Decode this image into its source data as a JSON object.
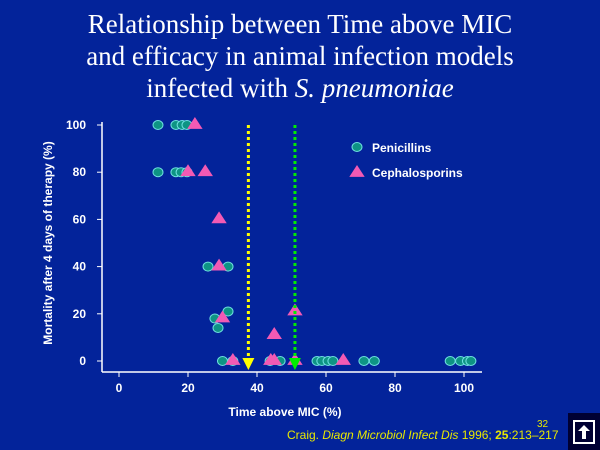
{
  "slide": {
    "title_line1": "Relationship between Time above MIC",
    "title_line2": "and efficacy in animal infection models",
    "title_line3_prefix": "infected with ",
    "title_line3_italic": "S. pneumoniae",
    "citation": {
      "author": "Craig. ",
      "journal": "Diagn Microbiol Infect Dis",
      "year": " 1996; ",
      "volume": "25",
      "pages": ":213–217"
    },
    "page_number": "32",
    "nav_icon": "return-arrow-icon"
  },
  "chart_data": {
    "type": "scatter",
    "xlabel": "Time above MIC (%)",
    "ylabel": "Mortality after 4 days of therapy (%)",
    "xlim": [
      -5,
      105
    ],
    "ylim": [
      0,
      100
    ],
    "xticks": [
      0,
      20,
      40,
      60,
      80,
      100
    ],
    "yticks": [
      0,
      20,
      40,
      60,
      80,
      100
    ],
    "legend_position": "top-right",
    "colors": {
      "background": "#03239a",
      "penicillins": "#0e9484",
      "penicillins_edge": "#6fe0e0",
      "cephalosporins": "#f25ab4",
      "axis": "#ffffff",
      "yellow_line": "#ffff00",
      "green_line": "#00ee00"
    },
    "series": [
      {
        "name": "Penicillins",
        "marker": "circle",
        "points": [
          [
            11.3,
            100
          ],
          [
            16.5,
            100
          ],
          [
            18.3,
            100
          ],
          [
            19.7,
            100
          ],
          [
            11.3,
            80
          ],
          [
            16.5,
            80
          ],
          [
            18,
            80
          ],
          [
            19.7,
            80
          ],
          [
            25.8,
            40
          ],
          [
            31.6,
            40
          ],
          [
            31.6,
            21
          ],
          [
            27.8,
            18
          ],
          [
            28.7,
            14
          ],
          [
            30,
            0
          ],
          [
            33,
            0
          ],
          [
            43.8,
            0
          ],
          [
            46.7,
            0
          ],
          [
            57.4,
            0
          ],
          [
            58.8,
            0
          ],
          [
            60.6,
            0
          ],
          [
            62,
            0
          ],
          [
            71,
            0
          ],
          [
            74,
            0
          ],
          [
            96,
            0
          ],
          [
            99,
            0
          ],
          [
            101,
            0
          ],
          [
            102,
            0
          ]
        ]
      },
      {
        "name": "Cephalosporins",
        "marker": "triangle",
        "points": [
          [
            22,
            100
          ],
          [
            20,
            80
          ],
          [
            25,
            80
          ],
          [
            29,
            60
          ],
          [
            29,
            40
          ],
          [
            30,
            18
          ],
          [
            45,
            11
          ],
          [
            51,
            21
          ],
          [
            33,
            0
          ],
          [
            44,
            0
          ],
          [
            45,
            0
          ],
          [
            51,
            0
          ],
          [
            65,
            0
          ]
        ]
      }
    ],
    "reference_lines": [
      {
        "name": "yellow-threshold",
        "x": 37.5,
        "style": "dotted-arrow"
      },
      {
        "name": "green-threshold",
        "x": 51,
        "style": "dotted-arrow"
      }
    ]
  }
}
